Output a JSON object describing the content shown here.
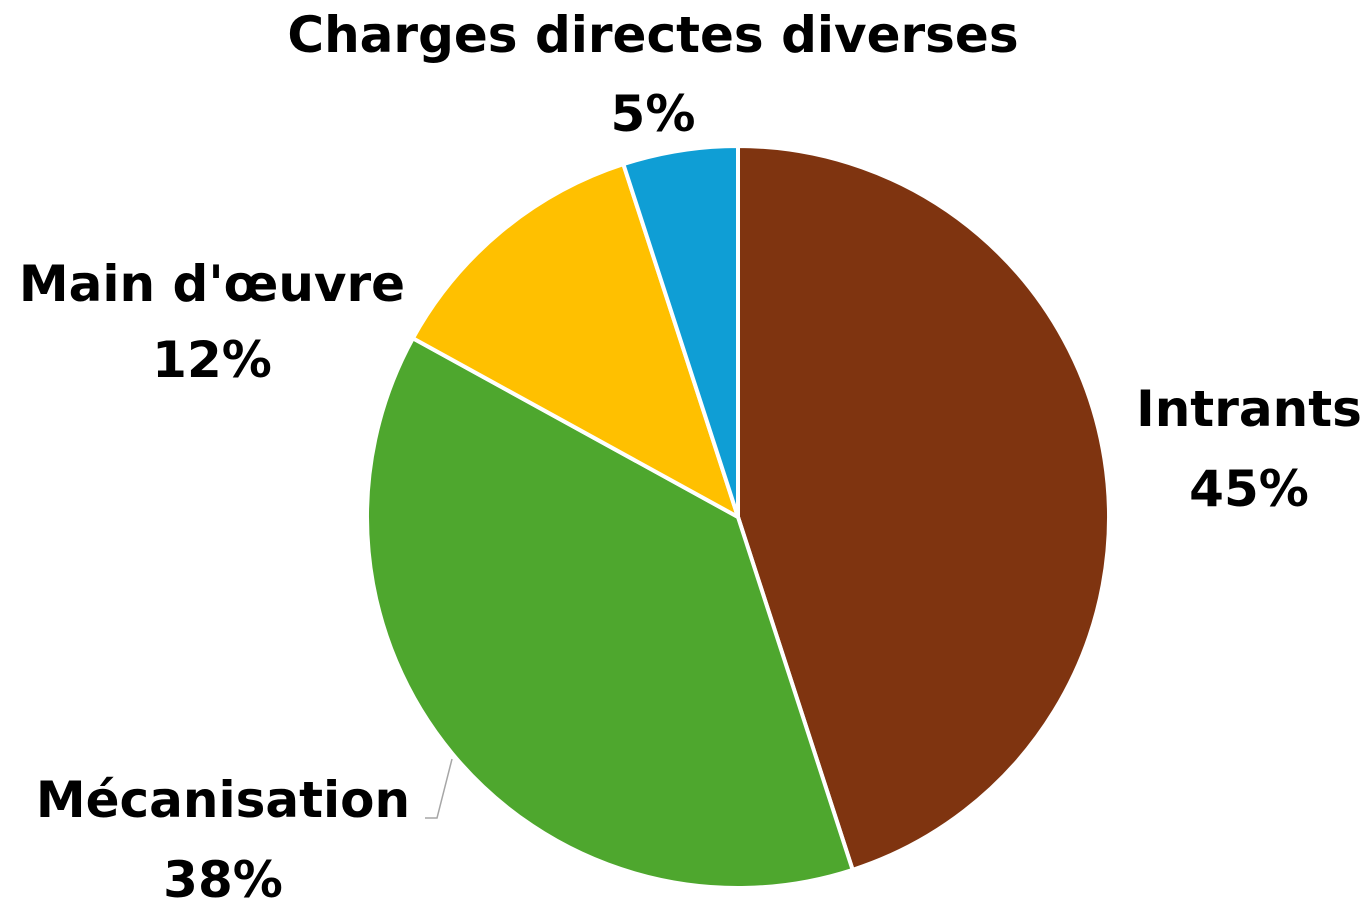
{
  "chart_data": {
    "type": "pie",
    "title": "",
    "start_angle_deg": 0,
    "direction": "clockwise",
    "slices": [
      {
        "name": "Intrants",
        "value": 45,
        "label": "45%",
        "color": "#7F3410"
      },
      {
        "name": "Mécanisation",
        "value": 38,
        "label": "38%",
        "color": "#4EA72E"
      },
      {
        "name": "Main d'œuvre",
        "value": 12,
        "label": "12%",
        "color": "#FFC000"
      },
      {
        "name": "Charges directes diverses",
        "value": 5,
        "label": "5%",
        "color": "#0F9ED5"
      }
    ],
    "legend": "none",
    "slice_border_color": "#FFFFFF",
    "leader_line_color": "#A6A6A6"
  }
}
